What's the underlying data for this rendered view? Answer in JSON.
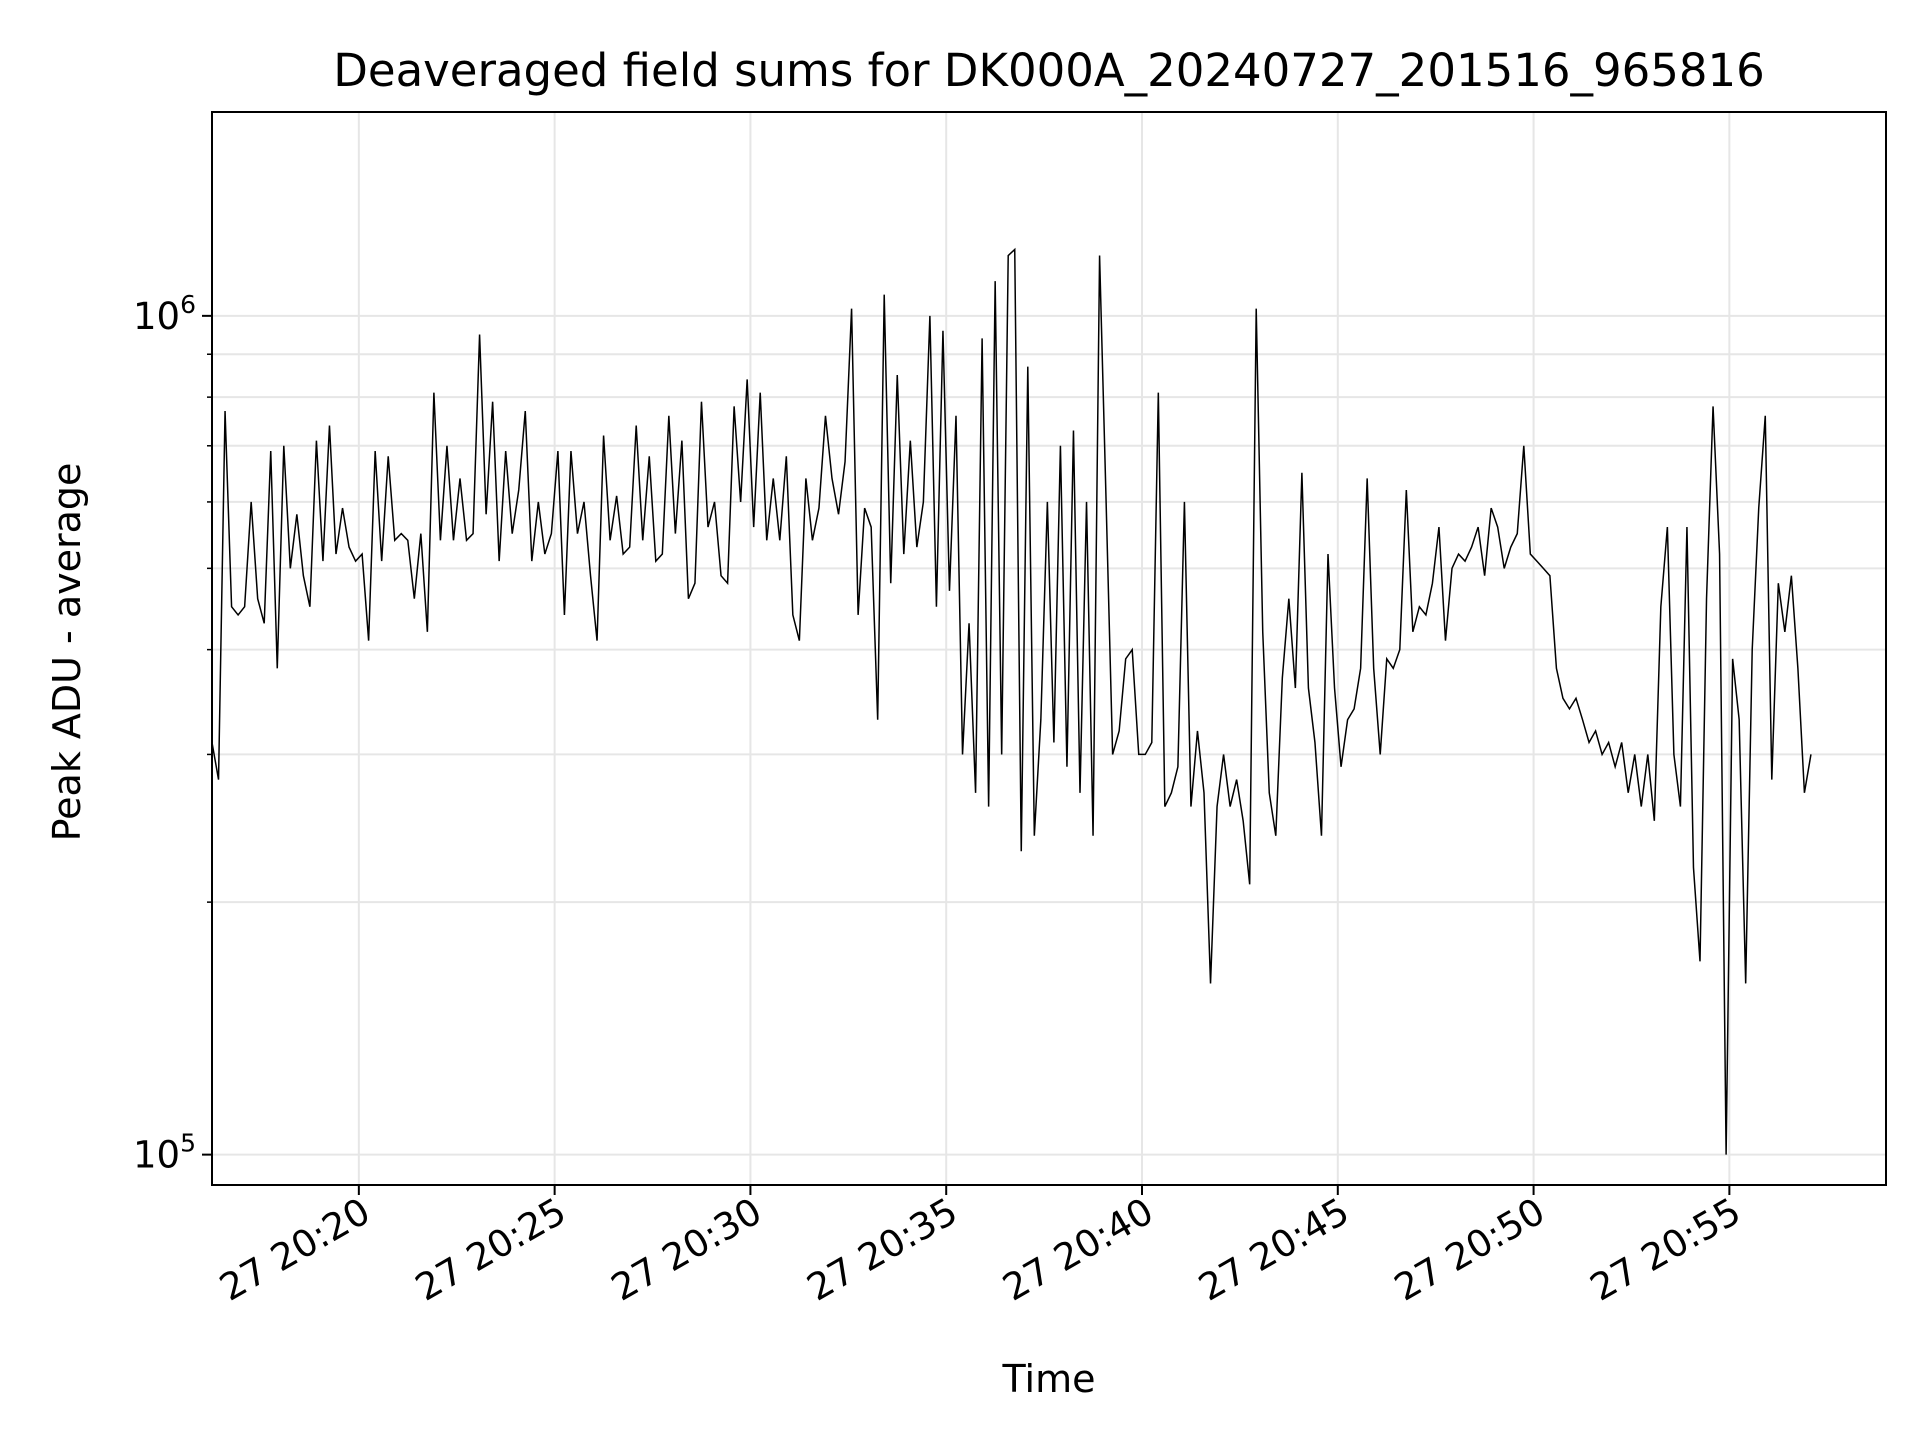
{
  "chart_data": {
    "type": "line",
    "title": "Deaveraged field sums for DK000A_20240727_201516_965816",
    "xlabel": "Time",
    "ylabel": "Peak ADU - average",
    "y_scale": "log",
    "xlim": [
      "2024-07-27T20:16:15",
      "2024-07-27T20:59:00"
    ],
    "ylim": [
      92000,
      1750000
    ],
    "grid": true,
    "line_color": "#000000",
    "grid_color": "#e6e6e6",
    "x_ticks": [
      {
        "value": "2024-07-27T20:20:00",
        "label": "27 20:20"
      },
      {
        "value": "2024-07-27T20:25:00",
        "label": "27 20:25"
      },
      {
        "value": "2024-07-27T20:30:00",
        "label": "27 20:30"
      },
      {
        "value": "2024-07-27T20:35:00",
        "label": "27 20:35"
      },
      {
        "value": "2024-07-27T20:40:00",
        "label": "27 20:40"
      },
      {
        "value": "2024-07-27T20:45:00",
        "label": "27 20:45"
      },
      {
        "value": "2024-07-27T20:50:00",
        "label": "27 20:50"
      },
      {
        "value": "2024-07-27T20:55:00",
        "label": "27 20:55"
      }
    ],
    "y_major_ticks": [
      {
        "value": 100000,
        "base": "10",
        "exponent": "5"
      },
      {
        "value": 1000000,
        "base": "10",
        "exponent": "6"
      }
    ],
    "y_minor_ticks": [
      200000,
      300000,
      400000,
      500000,
      600000,
      700000,
      800000,
      900000
    ],
    "series": [
      {
        "x_start": "2024-07-27T20:16:15",
        "x_step_seconds": 10,
        "values": [
          310000,
          280000,
          770000,
          450000,
          440000,
          450000,
          600000,
          460000,
          430000,
          690000,
          380000,
          700000,
          500000,
          580000,
          490000,
          450000,
          710000,
          510000,
          740000,
          520000,
          590000,
          530000,
          510000,
          520000,
          410000,
          690000,
          510000,
          680000,
          540000,
          550000,
          540000,
          460000,
          550000,
          420000,
          810000,
          540000,
          700000,
          540000,
          640000,
          540000,
          550000,
          950000,
          580000,
          790000,
          510000,
          690000,
          550000,
          620000,
          770000,
          510000,
          600000,
          520000,
          550000,
          690000,
          440000,
          690000,
          550000,
          600000,
          490000,
          410000,
          720000,
          540000,
          610000,
          520000,
          530000,
          740000,
          540000,
          680000,
          510000,
          520000,
          760000,
          550000,
          710000,
          460000,
          480000,
          790000,
          560000,
          600000,
          490000,
          480000,
          780000,
          600000,
          840000,
          560000,
          810000,
          540000,
          640000,
          540000,
          680000,
          440000,
          410000,
          640000,
          540000,
          590000,
          760000,
          640000,
          580000,
          670000,
          1020000,
          440000,
          590000,
          560000,
          330000,
          1060000,
          480000,
          850000,
          520000,
          710000,
          530000,
          600000,
          1000000,
          450000,
          960000,
          470000,
          760000,
          300000,
          430000,
          270000,
          940000,
          260000,
          1100000,
          300000,
          1180000,
          1200000,
          230000,
          870000,
          240000,
          330000,
          600000,
          310000,
          700000,
          290000,
          730000,
          270000,
          600000,
          240000,
          1180000,
          600000,
          300000,
          320000,
          390000,
          400000,
          300000,
          300000,
          310000,
          810000,
          260000,
          270000,
          290000,
          600000,
          260000,
          320000,
          270000,
          160000,
          260000,
          300000,
          260000,
          280000,
          250000,
          210000,
          1020000,
          420000,
          270000,
          240000,
          370000,
          460000,
          360000,
          650000,
          360000,
          310000,
          240000,
          520000,
          360000,
          290000,
          330000,
          340000,
          380000,
          640000,
          380000,
          300000,
          390000,
          380000,
          400000,
          620000,
          420000,
          450000,
          440000,
          480000,
          560000,
          410000,
          500000,
          520000,
          510000,
          530000,
          560000,
          490000,
          590000,
          560000,
          500000,
          530000,
          550000,
          700000,
          520000,
          510000,
          500000,
          490000,
          380000,
          350000,
          340000,
          350000,
          330000,
          310000,
          320000,
          300000,
          310000,
          290000,
          310000,
          270000,
          300000,
          260000,
          300000,
          250000,
          450000,
          560000,
          300000,
          260000,
          560000,
          220000,
          170000,
          460000,
          780000,
          520000,
          100000,
          390000,
          330000,
          160000,
          400000,
          590000,
          760000,
          280000,
          480000,
          420000,
          490000,
          380000,
          270000,
          300000
        ]
      }
    ]
  }
}
